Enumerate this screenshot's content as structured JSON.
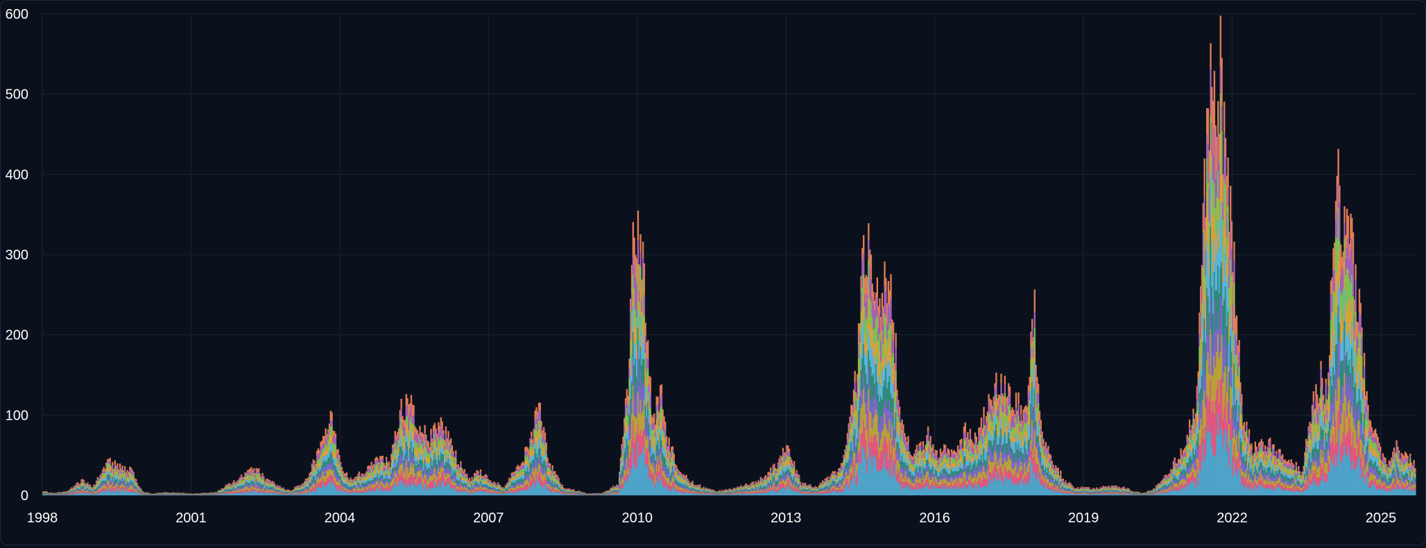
{
  "chart_data": {
    "type": "bar",
    "stacked": true,
    "title": "",
    "xlabel": "",
    "ylabel": "",
    "xlim": [
      1998,
      2025.7
    ],
    "ylim": [
      0,
      600
    ],
    "grid": true,
    "legend": "none",
    "x_ticks": [
      {
        "value": 1998,
        "label": "1998"
      },
      {
        "value": 2001,
        "label": "2001"
      },
      {
        "value": 2004,
        "label": "2004"
      },
      {
        "value": 2007,
        "label": "2007"
      },
      {
        "value": 2010,
        "label": "2010"
      },
      {
        "value": 2013,
        "label": "2013"
      },
      {
        "value": 2016,
        "label": "2016"
      },
      {
        "value": 2019,
        "label": "2019"
      },
      {
        "value": 2022,
        "label": "2022"
      },
      {
        "value": 2025,
        "label": "2025"
      }
    ],
    "y_ticks": [
      {
        "value": 0,
        "label": "0"
      },
      {
        "value": 100,
        "label": "100"
      },
      {
        "value": 200,
        "label": "200"
      },
      {
        "value": 300,
        "label": "300"
      },
      {
        "value": 400,
        "label": "400"
      },
      {
        "value": 500,
        "label": "500"
      },
      {
        "value": 600,
        "label": "600"
      }
    ],
    "series_colors": [
      "#4ea3c9",
      "#e0577f",
      "#b8a03a",
      "#7b67c9",
      "#2f8a7a",
      "#5cb3d6",
      "#d9a13b",
      "#7cbf55",
      "#a45fb5",
      "#e07b56"
    ],
    "x": [
      1998.0,
      1998.2,
      1998.5,
      1998.8,
      1999.0,
      1999.3,
      1999.6,
      1999.8,
      2000.0,
      2000.2,
      2000.5,
      2000.8,
      2001.0,
      2001.5,
      2002.0,
      2002.3,
      2002.5,
      2002.8,
      2003.0,
      2003.3,
      2003.6,
      2003.8,
      2004.0,
      2004.2,
      2004.5,
      2004.8,
      2005.0,
      2005.2,
      2005.4,
      2005.6,
      2005.8,
      2006.0,
      2006.2,
      2006.4,
      2006.6,
      2006.8,
      2007.0,
      2007.3,
      2007.6,
      2007.8,
      2008.0,
      2008.2,
      2008.5,
      2008.8,
      2009.0,
      2009.3,
      2009.6,
      2009.8,
      2009.9,
      2010.0,
      2010.1,
      2010.2,
      2010.3,
      2010.5,
      2010.6,
      2010.8,
      2011.0,
      2011.3,
      2011.6,
      2012.0,
      2012.3,
      2012.6,
      2012.8,
      2013.0,
      2013.3,
      2013.6,
      2014.0,
      2014.2,
      2014.4,
      2014.5,
      2014.6,
      2014.7,
      2014.8,
      2014.9,
      2015.0,
      2015.1,
      2015.2,
      2015.3,
      2015.4,
      2015.5,
      2015.7,
      2015.9,
      2016.0,
      2016.2,
      2016.4,
      2016.6,
      2016.8,
      2017.0,
      2017.2,
      2017.4,
      2017.6,
      2017.8,
      2017.9,
      2018.0,
      2018.1,
      2018.2,
      2018.4,
      2018.6,
      2018.8,
      2019.0,
      2019.2,
      2019.5,
      2019.8,
      2020.0,
      2020.2,
      2020.4,
      2020.6,
      2020.8,
      2021.0,
      2021.2,
      2021.3,
      2021.4,
      2021.5,
      2021.6,
      2021.7,
      2021.8,
      2021.9,
      2022.0,
      2022.1,
      2022.2,
      2022.4,
      2022.6,
      2022.8,
      2023.0,
      2023.2,
      2023.4,
      2023.6,
      2023.8,
      2023.9,
      2024.0,
      2024.1,
      2024.2,
      2024.3,
      2024.4,
      2024.5,
      2024.6,
      2024.7,
      2024.8,
      2024.9,
      2025.0,
      2025.1,
      2025.3,
      2025.5,
      2025.7
    ],
    "totals": [
      5,
      3,
      5,
      20,
      10,
      45,
      35,
      30,
      5,
      2,
      4,
      3,
      2,
      4,
      25,
      35,
      20,
      10,
      5,
      20,
      60,
      100,
      40,
      20,
      30,
      50,
      40,
      110,
      120,
      90,
      70,
      95,
      70,
      40,
      20,
      30,
      20,
      10,
      40,
      60,
      120,
      40,
      10,
      5,
      2,
      3,
      15,
      150,
      300,
      350,
      280,
      200,
      100,
      130,
      70,
      40,
      20,
      10,
      5,
      10,
      15,
      25,
      40,
      60,
      15,
      10,
      30,
      60,
      150,
      250,
      330,
      280,
      260,
      240,
      280,
      240,
      180,
      90,
      70,
      60,
      60,
      80,
      50,
      60,
      50,
      80,
      70,
      100,
      150,
      140,
      120,
      100,
      160,
      230,
      120,
      70,
      40,
      20,
      10,
      10,
      8,
      12,
      10,
      5,
      3,
      8,
      20,
      40,
      60,
      100,
      150,
      350,
      480,
      540,
      550,
      500,
      400,
      300,
      200,
      100,
      60,
      70,
      60,
      50,
      40,
      30,
      120,
      150,
      120,
      300,
      400,
      370,
      350,
      320,
      260,
      200,
      130,
      100,
      70,
      50,
      40,
      60,
      50,
      40
    ]
  }
}
